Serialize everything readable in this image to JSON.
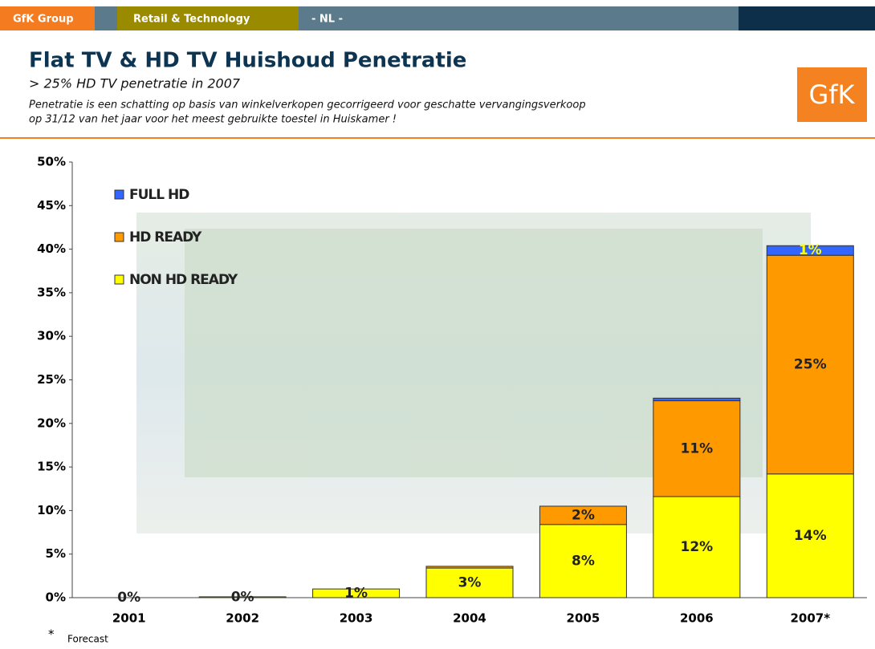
{
  "header": {
    "group": "GfK Group",
    "unit": "Retail & Technology",
    "country": "- NL -",
    "title": "Flat TV & HD TV Huishoud Penetratie",
    "subtitle": "> 25% HD TV penetratie in 2007",
    "note_line1": "Penetratie is een schatting op basis van winkelverkopen gecorrigeerd voor geschatte vervangingsverkoop",
    "note_line2": "op 31/12 van het jaar  voor het meest gebruikte toestel in Huiskamer !",
    "logo": "GfK"
  },
  "chart_data": {
    "type": "stacked_bar",
    "categories": [
      "2001",
      "2002",
      "2003",
      "2004",
      "2005",
      "2006",
      "2007*"
    ],
    "series": [
      {
        "name": "NON HD READY",
        "color": "#ffff00",
        "values": [
          0,
          0.1,
          1.0,
          3.4,
          8.4,
          11.6,
          14.2
        ],
        "value_labels": [
          "0%",
          "0%",
          "1%",
          "3%",
          "8%",
          "12%",
          "14%"
        ]
      },
      {
        "name": "HD READY",
        "color": "#ff9900",
        "values": [
          0,
          0,
          0,
          0.2,
          2.1,
          11.0,
          25.1
        ],
        "value_labels": [
          null,
          null,
          null,
          null,
          "2%",
          "11%",
          "25%"
        ]
      },
      {
        "name": "FULL HD",
        "color": "#3366ff",
        "values": [
          0,
          0,
          0,
          0,
          0,
          0.3,
          1.1
        ],
        "value_labels": [
          null,
          null,
          null,
          null,
          null,
          null,
          "1%"
        ]
      }
    ],
    "ylim": [
      0,
      50
    ],
    "yticks": [
      {
        "value": 0,
        "label": "0%"
      },
      {
        "value": 5,
        "label": "5%"
      },
      {
        "value": 10,
        "label": "10%"
      },
      {
        "value": 15,
        "label": "15%"
      },
      {
        "value": 20,
        "label": "20%"
      },
      {
        "value": 25,
        "label": "25%"
      },
      {
        "value": 30,
        "label": "30%"
      },
      {
        "value": 35,
        "label": "35%"
      },
      {
        "value": 40,
        "label": "40%"
      },
      {
        "value": 45,
        "label": "45%"
      },
      {
        "value": 50,
        "label": "50%"
      }
    ],
    "legend": "upper left",
    "footnote_mark": "*",
    "footnote": "Forecast"
  }
}
